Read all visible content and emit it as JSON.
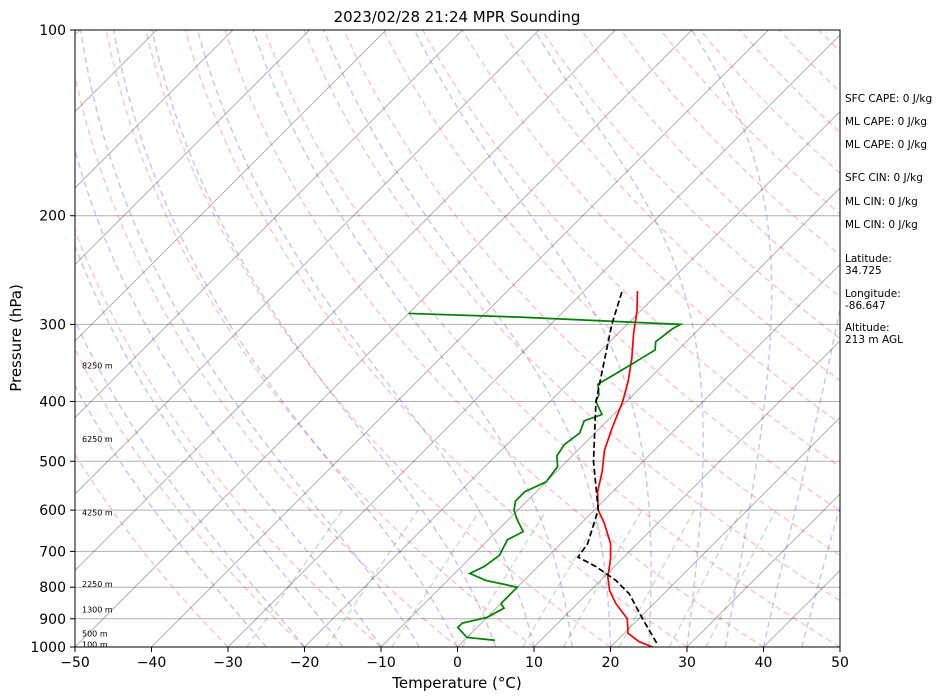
{
  "chart_data": {
    "type": "line",
    "title": "2023/02/28 21:24 MPR Sounding",
    "xlabel": "Temperature (°C)",
    "ylabel": "Pressure (hPa)",
    "xlim": [
      -50,
      50
    ],
    "ylim": [
      1000,
      100
    ],
    "yscale": "log",
    "grid": true,
    "x_ticks": [
      "−50",
      "−40",
      "−30",
      "−20",
      "−10",
      "0",
      "10",
      "20",
      "30",
      "40",
      "50"
    ],
    "y_ticks": [
      "1000",
      "900",
      "800",
      "700",
      "600",
      "500",
      "400",
      "300",
      "200",
      "100"
    ],
    "series": [
      {
        "name": "Temperature",
        "color": "#ff0000",
        "style": "solid",
        "points": [
          [
            1000,
            25.5
          ],
          [
            980,
            23.0
          ],
          [
            950,
            20.5
          ],
          [
            900,
            18.5
          ],
          [
            850,
            15.0
          ],
          [
            810,
            12.5
          ],
          [
            770,
            10.5
          ],
          [
            720,
            8.5
          ],
          [
            680,
            6.5
          ],
          [
            630,
            3.0
          ],
          [
            600,
            0.5
          ],
          [
            560,
            -2.0
          ],
          [
            520,
            -4.0
          ],
          [
            480,
            -6.5
          ],
          [
            440,
            -8.5
          ],
          [
            400,
            -10.5
          ],
          [
            370,
            -12.5
          ],
          [
            340,
            -15.0
          ],
          [
            310,
            -18.0
          ],
          [
            285,
            -20.5
          ],
          [
            265,
            -23.0
          ]
        ]
      },
      {
        "name": "Dewpoint",
        "color": "#008000",
        "style": "solid",
        "points": [
          [
            975,
            4.0
          ],
          [
            965,
            0.0
          ],
          [
            930,
            -2.5
          ],
          [
            915,
            -2.5
          ],
          [
            895,
            0.0
          ],
          [
            865,
            1.0
          ],
          [
            850,
            0.0
          ],
          [
            820,
            0.0
          ],
          [
            800,
            0.0
          ],
          [
            780,
            -5.0
          ],
          [
            760,
            -8.0
          ],
          [
            740,
            -7.0
          ],
          [
            710,
            -6.5
          ],
          [
            690,
            -7.0
          ],
          [
            670,
            -7.5
          ],
          [
            650,
            -6.5
          ],
          [
            620,
            -9.0
          ],
          [
            600,
            -10.5
          ],
          [
            580,
            -11.5
          ],
          [
            560,
            -11.5
          ],
          [
            540,
            -10.0
          ],
          [
            510,
            -10.5
          ],
          [
            490,
            -12.0
          ],
          [
            470,
            -12.5
          ],
          [
            450,
            -12.0
          ],
          [
            430,
            -13.0
          ],
          [
            420,
            -11.5
          ],
          [
            400,
            -14.0
          ],
          [
            390,
            -14.5
          ],
          [
            375,
            -16.0
          ],
          [
            360,
            -15.0
          ],
          [
            345,
            -14.0
          ],
          [
            330,
            -13.0
          ],
          [
            320,
            -14.0
          ],
          [
            305,
            -13.5
          ],
          [
            300,
            -13.0
          ],
          [
            292,
            -35.0
          ],
          [
            288,
            -50.0
          ]
        ]
      },
      {
        "name": "Parcel",
        "color": "#000000",
        "style": "dashed",
        "points": [
          [
            985,
            25.5
          ],
          [
            900,
            20.5
          ],
          [
            820,
            15.5
          ],
          [
            780,
            12.0
          ],
          [
            740,
            7.5
          ],
          [
            715,
            4.0
          ],
          [
            680,
            3.5
          ],
          [
            600,
            0.5
          ],
          [
            500,
            -6.5
          ],
          [
            400,
            -14.0
          ],
          [
            300,
            -22.0
          ],
          [
            265,
            -25.0
          ]
        ]
      }
    ],
    "height_labels": [
      "8250 m",
      "6250 m",
      "4250 m",
      "2250 m",
      "1300 m",
      "500 m",
      "100 m"
    ],
    "indices": {
      "sfc_cape": "SFC CAPE: 0 J/kg",
      "ml_cape_1": "ML CAPE: 0 J/kg",
      "ml_cape_2": "ML CAPE: 0 J/kg",
      "sfc_cin": "SFC CIN: 0 J/kg",
      "ml_cin_1": "ML CIN: 0 J/kg",
      "ml_cin_2": "ML CIN: 0 J/kg",
      "latitude": "Latitude:\n34.725",
      "longitude": "Longitude:\n-86.647",
      "altitude": "Altitude:\n213 m AGL"
    },
    "background_lines": {
      "dry_adiabat_color": "#ff0000",
      "moist_adiabat_color": "#0000ff",
      "mixing_ratio_color": "#008000",
      "isotherm_color": "#000000"
    }
  }
}
